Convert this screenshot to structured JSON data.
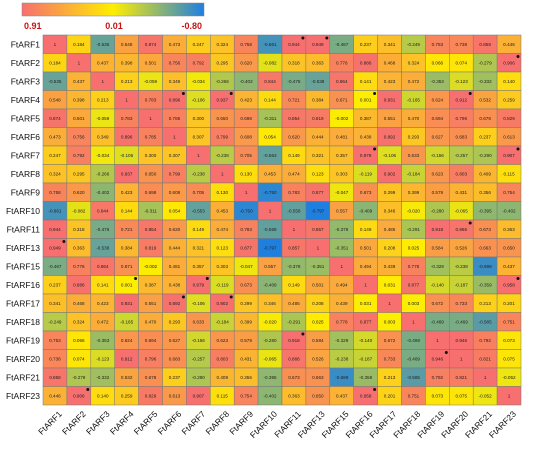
{
  "chart_data": {
    "type": "heatmap",
    "title": "",
    "legend": {
      "placement": "top-left",
      "labels": [
        "0.91",
        "0.01",
        "-0.80"
      ],
      "color_stops": [
        "#f76f6f",
        "#ffee00",
        "#1e7fe0"
      ]
    },
    "rows": [
      "FtARF1",
      "FtARF2",
      "FtARF3",
      "FtARF4",
      "FtARF5",
      "FtARF6",
      "FtARF7",
      "FtARF8",
      "FtARF9",
      "FtARF10",
      "FtARF11",
      "FtARF13",
      "FtARF15",
      "FtARF16",
      "FtARF17",
      "FtARF18",
      "FtARF19",
      "FtARF20",
      "FtARF21",
      "FtARF23"
    ],
    "columns": [
      "FtARF1",
      "FtARF2",
      "FtARF3",
      "FtARF4",
      "FtARF5",
      "FtARF6",
      "FtARF7",
      "FtARF8",
      "FtARF9",
      "FtARF10",
      "FtARF11",
      "FtARF13",
      "FtARF15",
      "FtARF16",
      "FtARF17",
      "FtARF18",
      "FtARF19",
      "FtARF20",
      "FtARF21",
      "FtARF23"
    ],
    "values": [
      [
        1,
        0.184,
        -0.535,
        0.548,
        0.874,
        0.473,
        0.247,
        0.324,
        0.758,
        -0.661,
        0.944,
        0.949,
        -0.467,
        0.237,
        0.341,
        -0.249,
        0.753,
        0.738,
        0.858,
        0.446
      ],
      [
        0.184,
        1,
        0.437,
        0.398,
        0.501,
        0.756,
        0.792,
        0.295,
        0.62,
        -0.082,
        0.318,
        0.363,
        0.776,
        0.886,
        0.468,
        0.324,
        0.066,
        0.074,
        -0.279,
        0.906
      ],
      [
        -0.535,
        0.437,
        1,
        0.213,
        -0.059,
        0.349,
        -0.034,
        -0.266,
        -0.402,
        0.844,
        -0.476,
        -0.538,
        0.864,
        0.141,
        0.423,
        0.472,
        -0.353,
        -0.123,
        -0.332,
        0.14
      ],
      [
        0.548,
        0.398,
        0.213,
        1,
        0.783,
        0.896,
        -0.106,
        0.937,
        0.423,
        0.144,
        0.721,
        0.384,
        0.671,
        0.001,
        0.931,
        -0.165,
        0.624,
        0.912,
        0.532,
        0.259
      ],
      [
        0.874,
        0.501,
        -0.059,
        0.783,
        1,
        0.785,
        0.3,
        0.65,
        0.698,
        -0.311,
        0.854,
        0.819,
        -0.002,
        0.387,
        0.551,
        0.47,
        0.694,
        0.796,
        0.678,
        0.829
      ],
      [
        0.473,
        0.756,
        0.349,
        0.896,
        0.785,
        1,
        0.307,
        0.799,
        0.608,
        0.054,
        0.62,
        0.444,
        0.481,
        0.438,
        0.892,
        0.293,
        0.627,
        0.683,
        0.237,
        0.613
      ],
      [
        0.247,
        0.792,
        -0.034,
        -0.106,
        0.3,
        0.307,
        1,
        -0.238,
        0.705,
        -0.553,
        0.149,
        0.321,
        0.357,
        0.979,
        -0.106,
        0.633,
        -0.156,
        -0.257,
        -0.29,
        0.907
      ],
      [
        0.324,
        0.295,
        -0.266,
        0.937,
        0.65,
        0.799,
        -0.238,
        1,
        0.13,
        0.453,
        0.474,
        0.123,
        0.303,
        -0.119,
        0.902,
        -0.184,
        0.623,
        0.803,
        0.409,
        0.115
      ],
      [
        0.758,
        0.62,
        -0.402,
        0.423,
        0.698,
        0.608,
        0.705,
        0.13,
        1,
        -0.75,
        0.783,
        0.877,
        -0.047,
        0.673,
        0.299,
        0.399,
        0.579,
        0.431,
        0.356,
        0.754
      ],
      [
        -0.661,
        -0.082,
        0.844,
        0.144,
        -0.311,
        0.054,
        -0.553,
        0.453,
        -0.75,
        1,
        -0.558,
        -0.797,
        0.557,
        -0.409,
        0.346,
        -0.02,
        -0.28,
        -0.065,
        -0.395,
        -0.402
      ],
      [
        0.944,
        0.318,
        -0.476,
        0.721,
        0.854,
        0.62,
        0.149,
        0.474,
        0.783,
        -0.558,
        1,
        0.857,
        -0.378,
        0.149,
        0.485,
        -0.291,
        0.918,
        0.866,
        0.673,
        0.363
      ],
      [
        0.949,
        0.363,
        -0.538,
        0.384,
        0.819,
        0.444,
        0.321,
        0.123,
        0.877,
        -0.797,
        0.857,
        1,
        -0.351,
        0.501,
        0.208,
        0.025,
        0.584,
        0.526,
        0.663,
        0.65
      ],
      [
        -0.467,
        0.776,
        0.864,
        0.671,
        -0.002,
        0.481,
        0.357,
        0.303,
        -0.047,
        0.557,
        -0.378,
        -0.351,
        1,
        0.494,
        0.439,
        0.778,
        -0.329,
        -0.238,
        -0.699,
        0.437
      ],
      [
        0.237,
        0.886,
        0.141,
        0.001,
        0.387,
        0.438,
        0.979,
        -0.119,
        0.673,
        -0.409,
        0.149,
        0.501,
        0.494,
        1,
        0.031,
        0.877,
        -0.14,
        -0.187,
        -0.359,
        0.958
      ],
      [
        0.341,
        0.468,
        0.423,
        0.931,
        0.551,
        0.892,
        -0.106,
        0.902,
        0.299,
        0.346,
        0.485,
        0.208,
        0.439,
        0.031,
        1,
        0.003,
        0.672,
        0.733,
        0.213,
        0.201
      ],
      [
        -0.249,
        0.324,
        0.472,
        -0.165,
        0.47,
        0.293,
        0.633,
        -0.184,
        0.399,
        -0.02,
        -0.291,
        0.025,
        0.778,
        0.877,
        0.003,
        1,
        -0.469,
        -0.469,
        -0.585,
        0.751
      ],
      [
        0.753,
        0.066,
        -0.353,
        0.624,
        0.694,
        0.627,
        -0.156,
        0.623,
        0.579,
        -0.28,
        0.918,
        0.584,
        -0.329,
        -0.14,
        0.672,
        -0.469,
        1,
        0.946,
        0.792,
        0.073
      ],
      [
        0.738,
        0.074,
        -0.123,
        0.912,
        0.796,
        0.683,
        -0.257,
        0.803,
        0.431,
        -0.065,
        0.866,
        0.526,
        -0.238,
        -0.187,
        0.733,
        -0.469,
        0.946,
        1,
        0.821,
        0.075
      ],
      [
        0.858,
        -0.279,
        -0.332,
        0.532,
        0.678,
        0.237,
        -0.29,
        0.409,
        0.356,
        -0.395,
        0.673,
        0.663,
        -0.699,
        -0.359,
        0.213,
        -0.585,
        0.792,
        0.821,
        1,
        -0.052
      ],
      [
        0.446,
        0.906,
        0.14,
        0.259,
        0.829,
        0.613,
        0.907,
        0.115,
        0.754,
        -0.402,
        0.363,
        0.65,
        0.437,
        0.958,
        0.201,
        0.751,
        0.073,
        0.075,
        -0.052,
        1
      ]
    ],
    "value_range": [
      -0.8,
      0.91
    ],
    "grid": true,
    "significance_marks": [
      [
        0,
        10
      ],
      [
        0,
        11
      ],
      [
        1,
        19
      ],
      [
        3,
        5
      ],
      [
        3,
        7
      ],
      [
        3,
        13
      ],
      [
        3,
        17
      ],
      [
        6,
        13
      ],
      [
        6,
        19
      ],
      [
        10,
        17
      ],
      [
        11,
        0
      ],
      [
        13,
        3
      ],
      [
        13,
        6
      ],
      [
        13,
        19
      ],
      [
        14,
        5
      ],
      [
        14,
        7
      ],
      [
        16,
        10
      ],
      [
        17,
        16
      ],
      [
        19,
        1
      ],
      [
        19,
        13
      ]
    ]
  }
}
